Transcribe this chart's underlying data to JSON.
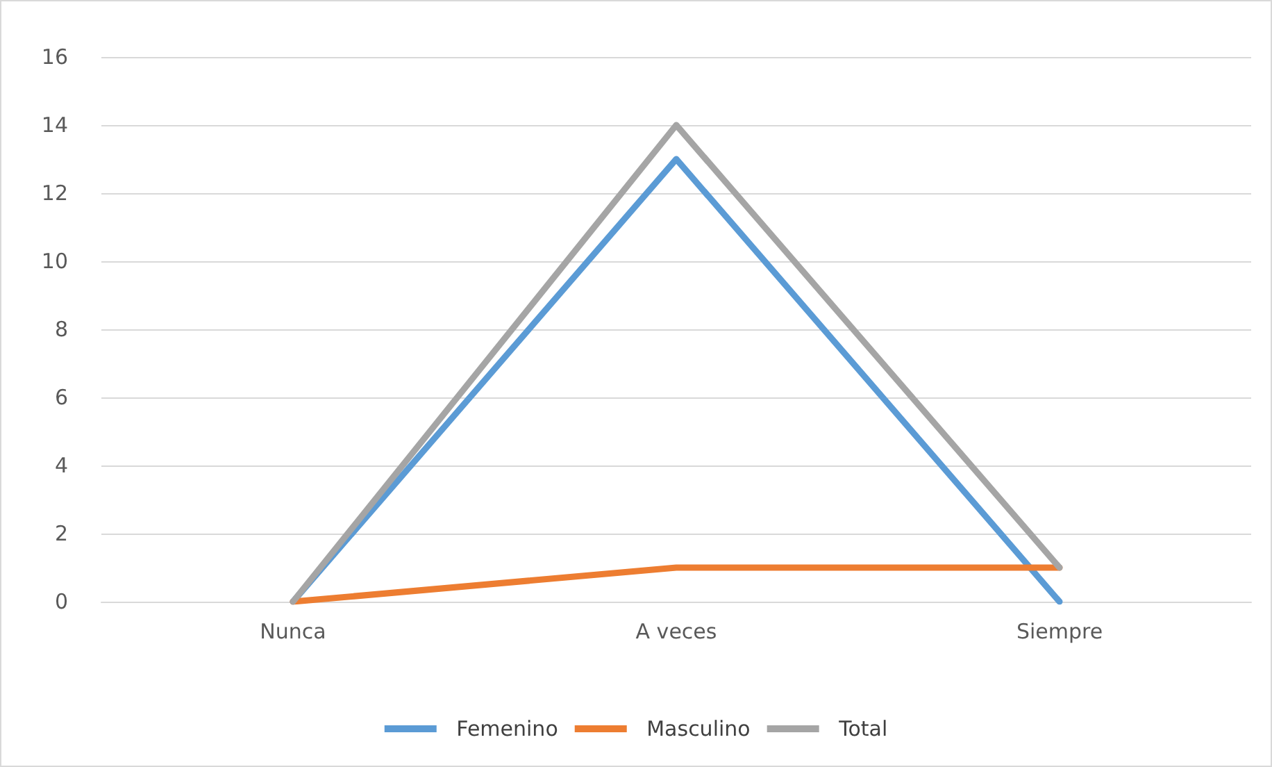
{
  "chart_data": {
    "type": "line",
    "categories": [
      "Nunca",
      "A veces",
      "Siempre"
    ],
    "series": [
      {
        "name": "Femenino",
        "color": "#5b9bd5",
        "values": [
          0,
          13,
          0
        ]
      },
      {
        "name": "Masculino",
        "color": "#ed7d31",
        "values": [
          0,
          1,
          1
        ]
      },
      {
        "name": "Total",
        "color": "#a5a5a5",
        "values": [
          0,
          14,
          1
        ]
      }
    ],
    "ylim": [
      0,
      16
    ],
    "yticks": [
      0,
      2,
      4,
      6,
      8,
      10,
      12,
      14,
      16
    ],
    "grid": "y",
    "legend": "bottom",
    "marker": "none",
    "line_style": "solid"
  }
}
